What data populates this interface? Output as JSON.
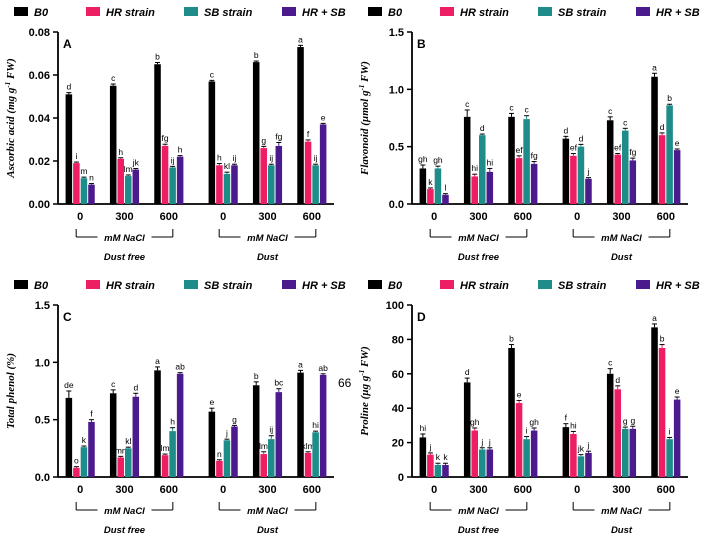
{
  "figure": {
    "page_number": "66",
    "colors": {
      "B0": "#000000",
      "HR strain": "#ee1e62",
      "SB strain": "#1e8c88",
      "HR + SB": "#4b1a8c"
    }
  },
  "chart_data": [
    {
      "type": "bar",
      "panel_label": "A",
      "ylabel_html": "Ascorbic acid (mg g<tspan baseline-shift='super' font-size='7'>-1</tspan> FW)",
      "ylabel": "Ascorbic acid (mg g-1 FW)",
      "ylim": [
        0,
        0.08
      ],
      "yticks": [
        "0.00",
        "0.02",
        "0.04",
        "0.06",
        "0.08"
      ],
      "ytick_values": [
        0,
        0.02,
        0.04,
        0.06,
        0.08
      ],
      "categories": [
        "0",
        "300",
        "600",
        "0",
        "300",
        "600"
      ],
      "group_labels": [
        "Dust free",
        "Dust"
      ],
      "bracket_label": "mM NaCl",
      "legend": [
        "B0",
        "HR strain",
        "SB strain",
        "HR + SB"
      ],
      "series": [
        {
          "name": "B0",
          "values": [
            0.051,
            0.055,
            0.065,
            0.057,
            0.066,
            0.073
          ],
          "errors": [
            0.0008,
            0.0008,
            0.0008,
            0.0005,
            0.0005,
            0.0008
          ],
          "letters": [
            "d",
            "c",
            "b",
            "c",
            "b",
            "a"
          ]
        },
        {
          "name": "HR strain",
          "values": [
            0.019,
            0.021,
            0.027,
            0.018,
            0.026,
            0.029
          ],
          "errors": [
            0.0005,
            0.0005,
            0.0008,
            0.0008,
            0.0008,
            0.0008
          ],
          "letters": [
            "i",
            "h",
            "fg",
            "h",
            "g",
            "f"
          ]
        },
        {
          "name": "SB strain",
          "values": [
            0.012,
            0.013,
            0.017,
            0.014,
            0.018,
            0.018
          ],
          "errors": [
            0.0005,
            0.0005,
            0.0005,
            0.0008,
            0.0005,
            0.0005
          ],
          "letters": [
            "m",
            "lm",
            "ij",
            "kl",
            "ij",
            "ij"
          ]
        },
        {
          "name": "HR + SB",
          "values": [
            0.009,
            0.016,
            0.022,
            0.018,
            0.027,
            0.037
          ],
          "errors": [
            0.0005,
            0.0005,
            0.0005,
            0.0005,
            0.0016,
            0.0005
          ],
          "letters": [
            "n",
            "jk",
            "h",
            "ij",
            "fg",
            "e"
          ]
        }
      ]
    },
    {
      "type": "bar",
      "panel_label": "B",
      "ylabel_html": "Flavonoid (µmol g<tspan baseline-shift='super' font-size='7'>-1</tspan> FW)",
      "ylabel": "Flavonoid (µmol g-1 FW)",
      "ylim": [
        0,
        1.5
      ],
      "yticks": [
        "0.0",
        "0.5",
        "1.0",
        "1.5"
      ],
      "ytick_values": [
        0,
        0.5,
        1.0,
        1.5
      ],
      "categories": [
        "0",
        "300",
        "600",
        "0",
        "300",
        "600"
      ],
      "group_labels": [
        "Dust free",
        "Dust"
      ],
      "bracket_label": "mM NaCl",
      "legend": [
        "B0",
        "HR strain",
        "SB strain",
        "HR + SB"
      ],
      "series": [
        {
          "name": "B0",
          "values": [
            0.31,
            0.76,
            0.76,
            0.57,
            0.73,
            1.11
          ],
          "errors": [
            0.03,
            0.06,
            0.03,
            0.02,
            0.03,
            0.03
          ],
          "letters": [
            "gh",
            "c",
            "c",
            "d",
            "c",
            "a"
          ]
        },
        {
          "name": "HR strain",
          "values": [
            0.13,
            0.24,
            0.4,
            0.42,
            0.43,
            0.6
          ],
          "errors": [
            0.01,
            0.02,
            0.02,
            0.02,
            0.01,
            0.02
          ],
          "letters": [
            "k",
            "hi",
            "ef",
            "ef",
            "ef",
            "d"
          ]
        },
        {
          "name": "SB strain",
          "values": [
            0.31,
            0.6,
            0.74,
            0.5,
            0.64,
            0.86
          ],
          "errors": [
            0.02,
            0.01,
            0.03,
            0.02,
            0.02,
            0.01
          ],
          "letters": [
            "gh",
            "d",
            "c",
            "d",
            "c",
            "b"
          ]
        },
        {
          "name": "HR + SB",
          "values": [
            0.08,
            0.28,
            0.35,
            0.22,
            0.38,
            0.47
          ],
          "errors": [
            0.01,
            0.03,
            0.02,
            0.01,
            0.02,
            0.01
          ],
          "letters": [
            "l",
            "hi",
            "fg",
            "j",
            "fg",
            "e"
          ]
        }
      ]
    },
    {
      "type": "bar",
      "panel_label": "C",
      "ylabel_html": "Total phenol (%)",
      "ylabel": "Total phenol (%)",
      "ylim": [
        0,
        1.5
      ],
      "yticks": [
        "0.0",
        "0.5",
        "1.0",
        "1.5"
      ],
      "ytick_values": [
        0,
        0.5,
        1.0,
        1.5
      ],
      "categories": [
        "0",
        "300",
        "600",
        "0",
        "300",
        "600"
      ],
      "group_labels": [
        "Dust free",
        "Dust"
      ],
      "bracket_label": "mM NaCl",
      "legend": [
        "B0",
        "HR strain",
        "SB strain",
        "HR + SB"
      ],
      "series": [
        {
          "name": "B0",
          "values": [
            0.69,
            0.73,
            0.93,
            0.57,
            0.8,
            0.91
          ],
          "errors": [
            0.06,
            0.03,
            0.03,
            0.03,
            0.03,
            0.02
          ],
          "letters": [
            "de",
            "c",
            "a",
            "e",
            "b",
            "a"
          ]
        },
        {
          "name": "HR strain",
          "values": [
            0.08,
            0.17,
            0.19,
            0.14,
            0.2,
            0.21
          ],
          "errors": [
            0.01,
            0.01,
            0.01,
            0.01,
            0.02,
            0.01
          ],
          "letters": [
            "o",
            "mn",
            "lm",
            "n",
            "klmn",
            "klm"
          ]
        },
        {
          "name": "SB strain",
          "values": [
            0.26,
            0.25,
            0.4,
            0.32,
            0.33,
            0.39
          ],
          "errors": [
            0.01,
            0.01,
            0.03,
            0.01,
            0.03,
            0.01
          ],
          "letters": [
            "k",
            "kl",
            "h",
            "j",
            "ij",
            "hi"
          ]
        },
        {
          "name": "HR + SB",
          "values": [
            0.48,
            0.7,
            0.9,
            0.44,
            0.74,
            0.89
          ],
          "errors": [
            0.02,
            0.03,
            0.01,
            0.01,
            0.03,
            0.01
          ],
          "letters": [
            "f",
            "d",
            "ab",
            "g",
            "bc",
            "ab"
          ]
        }
      ]
    },
    {
      "type": "bar",
      "panel_label": "D",
      "ylabel_html": "Proline (µg g<tspan baseline-shift='super' font-size='7'>-1</tspan> FW)",
      "ylabel": "Proline (µg g-1 FW)",
      "ylim": [
        0,
        100
      ],
      "yticks": [
        "0",
        "20",
        "40",
        "60",
        "80",
        "100"
      ],
      "ytick_values": [
        0,
        20,
        40,
        60,
        80,
        100
      ],
      "categories": [
        "0",
        "300",
        "600",
        "0",
        "300",
        "600"
      ],
      "group_labels": [
        "Dust free",
        "Dust"
      ],
      "bracket_label": "mM NaCl",
      "legend": [
        "B0",
        "HR strain",
        "SB strain",
        "HR + SB"
      ],
      "series": [
        {
          "name": "B0",
          "values": [
            23,
            55,
            75,
            29,
            60,
            87
          ],
          "errors": [
            2,
            2.5,
            2,
            2,
            3,
            2
          ],
          "letters": [
            "hi",
            "d",
            "b",
            "f",
            "c",
            "a"
          ]
        },
        {
          "name": "HR strain",
          "values": [
            13,
            27,
            43,
            25,
            51,
            75
          ],
          "errors": [
            1,
            1.5,
            1.5,
            1.5,
            2,
            2
          ],
          "letters": [
            "j",
            "gh",
            "e",
            "hi",
            "d",
            "b"
          ]
        },
        {
          "name": "SB strain",
          "values": [
            7,
            16,
            22,
            12,
            28,
            22
          ],
          "errors": [
            1,
            1,
            1.5,
            1,
            1,
            1
          ],
          "letters": [
            "k",
            "j",
            "i",
            "jk",
            "g",
            "i"
          ]
        },
        {
          "name": "HR + SB",
          "values": [
            7,
            16,
            27,
            14,
            28,
            45
          ],
          "errors": [
            1,
            1,
            1.5,
            1,
            1.5,
            1.5
          ],
          "letters": [
            "k",
            "j",
            "gh",
            "j",
            "g",
            "e"
          ]
        }
      ]
    }
  ]
}
